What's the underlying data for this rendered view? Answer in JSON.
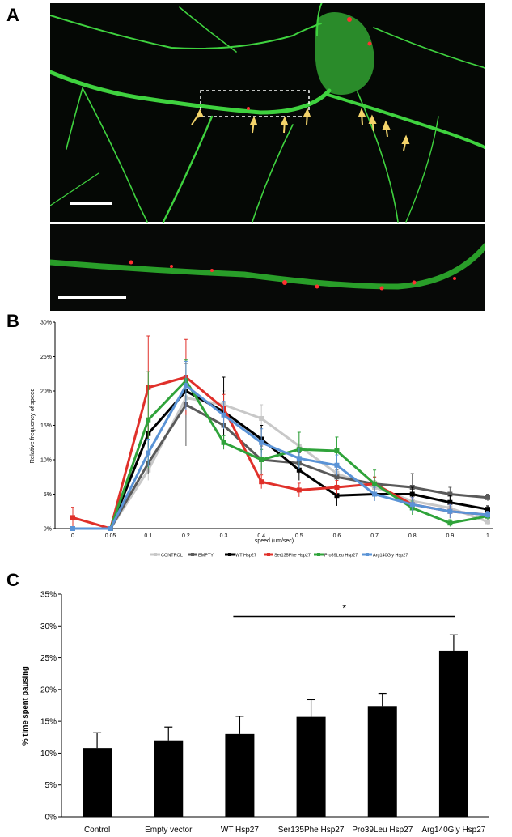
{
  "panel_labels": {
    "a": "A",
    "b": "B",
    "c": "C"
  },
  "colors": {
    "CONTROL": "#c8c8c8",
    "EMPTY": "#5a5a5a",
    "WT Hsp27": "#000000",
    "Ser135Phe Hsp27": "#e0302a",
    "Pro39Leu Hsp27": "#2fa33a",
    "Arg140Gly Hsp27": "#5a93d6",
    "neurite": "#3fd23f",
    "mito": "#ff3030",
    "arrow": "#f3d36a"
  },
  "chart_data": [
    {
      "type": "line",
      "panel": "B",
      "xlabel": "speed (um/sec)",
      "ylabel": "Relative frequency of speed",
      "categories": [
        "0",
        "0.05",
        "0.1",
        "0.2",
        "0.3",
        "0.4",
        "0.5",
        "0.6",
        "0.7",
        "0.8",
        "0.9",
        "1"
      ],
      "y_ticks": [
        "0%",
        "5%",
        "10%",
        "15%",
        "20%",
        "25%",
        "30%"
      ],
      "ylim": [
        0,
        30
      ],
      "legend_position": "bottom",
      "series": [
        {
          "name": "CONTROL",
          "values": [
            0,
            0,
            8.5,
            19,
            18,
            16,
            12,
            8,
            6,
            4,
            3,
            1
          ],
          "errors": [
            0,
            0,
            1.5,
            3,
            2,
            2,
            2,
            1.5,
            1,
            1,
            1,
            0.5
          ]
        },
        {
          "name": "EMPTY",
          "values": [
            0,
            0,
            9.5,
            18,
            15,
            10,
            9.5,
            7.5,
            6.5,
            6,
            5,
            4.5
          ],
          "errors": [
            0,
            0,
            1.5,
            6,
            2,
            2,
            1.5,
            1,
            1,
            2,
            1,
            0.5
          ]
        },
        {
          "name": "WT Hsp27",
          "values": [
            0,
            0,
            13.8,
            20,
            17,
            13,
            8.5,
            4.8,
            5,
            5,
            3.8,
            2.8
          ],
          "errors": [
            0,
            0,
            2,
            2,
            5,
            2,
            1.5,
            1.5,
            1,
            1,
            1,
            0.5
          ]
        },
        {
          "name": "Ser135Phe Hsp27",
          "values": [
            1.6,
            0,
            20.5,
            22,
            17.5,
            6.8,
            5.6,
            6,
            6.5,
            3.5,
            2.5,
            2
          ],
          "errors": [
            1.5,
            0,
            7.5,
            5.5,
            2,
            1,
            1,
            1,
            1,
            1,
            1,
            0.5
          ]
        },
        {
          "name": "Pro39Leu Hsp27",
          "values": [
            0,
            0,
            15.8,
            21.5,
            12.5,
            10,
            11.5,
            11.3,
            6.5,
            3,
            0.8,
            1.8
          ],
          "errors": [
            0,
            0,
            7,
            3,
            1,
            1.5,
            2.5,
            2,
            2,
            1,
            0.5,
            0.5
          ]
        },
        {
          "name": "Arg140Gly Hsp27",
          "values": [
            0,
            0,
            11,
            20.8,
            16.5,
            12.5,
            10.2,
            9.2,
            5,
            3.5,
            2.5,
            2
          ],
          "errors": [
            0,
            0,
            2,
            3.5,
            2,
            2,
            1.5,
            1.5,
            1,
            1,
            1,
            0.5
          ]
        }
      ]
    },
    {
      "type": "bar",
      "panel": "C",
      "ylabel": "% time spent pausing",
      "categories": [
        "Control",
        "Empty vector",
        "WT Hsp27",
        "Ser135Phe Hsp27",
        "Pro39Leu Hsp27",
        "Arg140Gly Hsp27"
      ],
      "values": [
        10.8,
        12,
        13,
        15.7,
        17.4,
        26.1
      ],
      "errors": [
        2.4,
        2.1,
        2.8,
        2.7,
        2,
        2.5
      ],
      "y_ticks": [
        "0%",
        "5%",
        "10%",
        "15%",
        "20%",
        "25%",
        "30%",
        "35%"
      ],
      "ylim": [
        0,
        35
      ],
      "significance": {
        "label": "*",
        "from": 2,
        "to": 5,
        "y": 31.5
      }
    }
  ]
}
